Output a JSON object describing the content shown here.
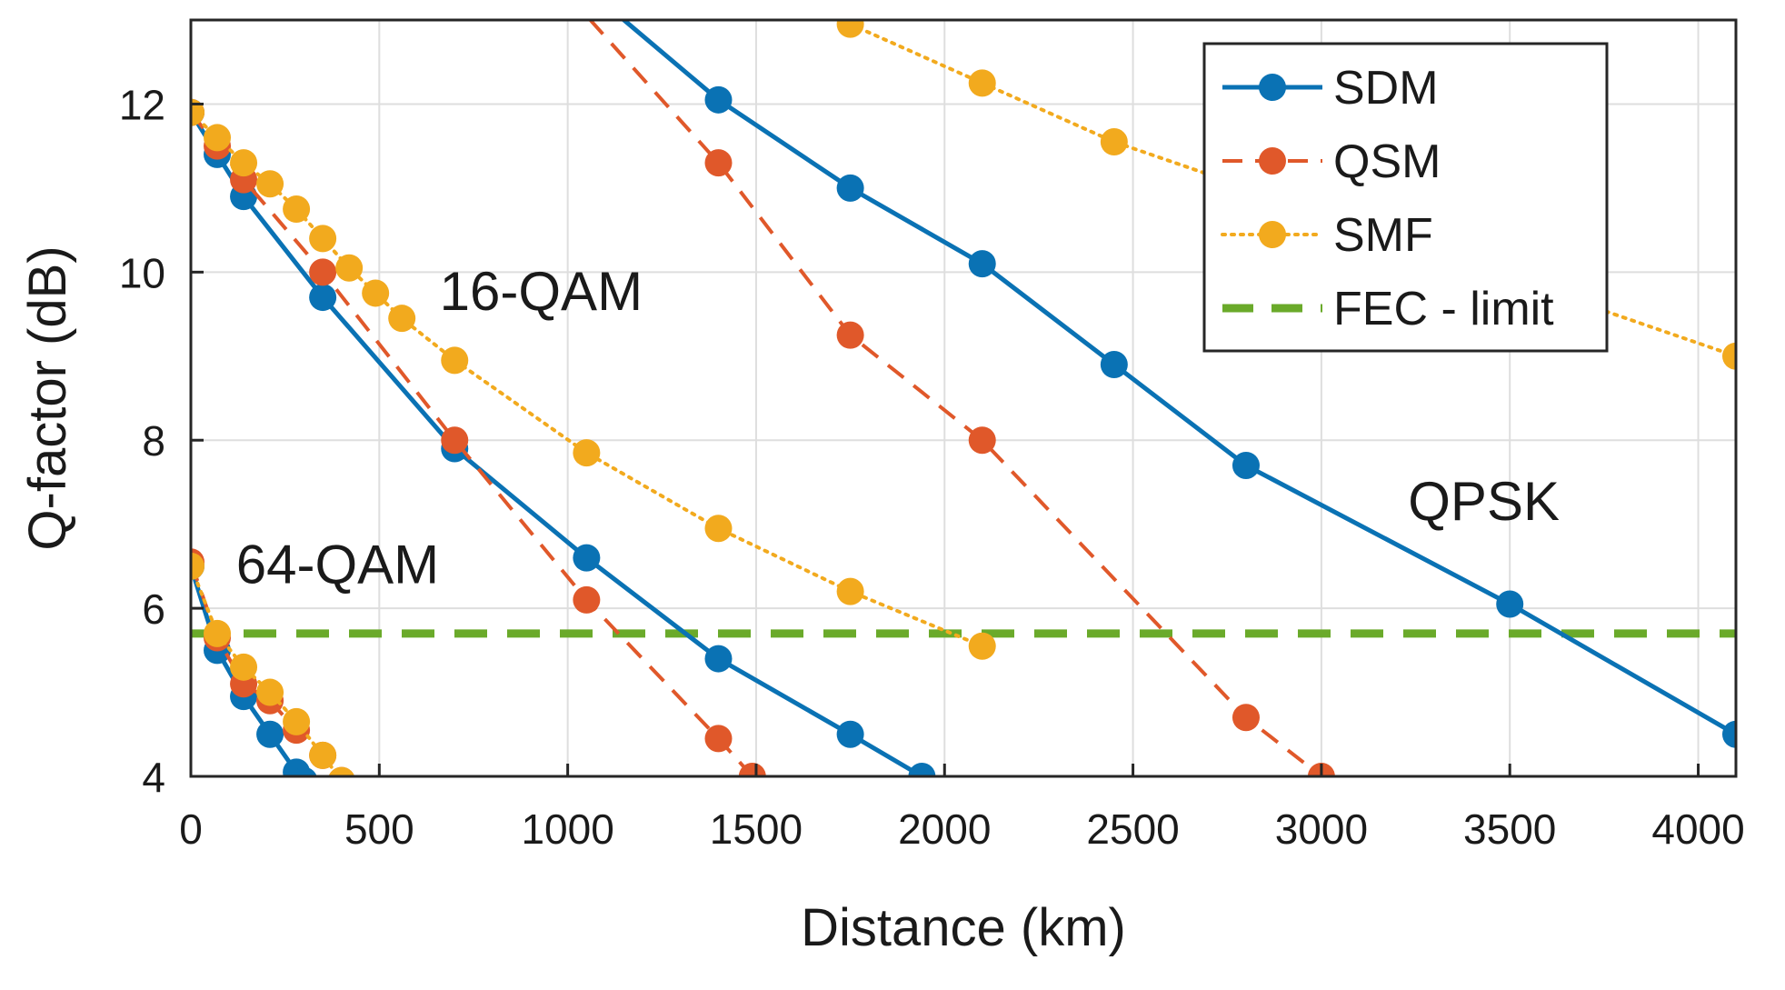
{
  "chart_data": {
    "type": "line",
    "xlabel": "Distance (km)",
    "ylabel": "Q-factor (dB)",
    "xlim": [
      0,
      4100
    ],
    "ylim": [
      4,
      13
    ],
    "xticks": [
      0,
      500,
      1000,
      1500,
      2000,
      2500,
      3000,
      3500,
      4000
    ],
    "yticks": [
      4,
      6,
      8,
      10,
      12
    ],
    "grid": true,
    "legend_position": "top-right",
    "fec_limit": {
      "name": "FEC - limit",
      "y": 5.7,
      "color": "#6aaa2a"
    },
    "series": [
      {
        "key": "sdm",
        "name": "SDM",
        "color": "#0a72b4",
        "style": "solid",
        "show_in_legend": true,
        "points": [
          [
            0,
            11.9
          ],
          [
            70,
            11.4
          ],
          [
            140,
            10.9
          ],
          [
            350,
            9.7
          ],
          [
            700,
            7.9
          ],
          [
            1050,
            6.6
          ],
          [
            1400,
            5.4
          ],
          [
            1750,
            4.5
          ],
          [
            1940,
            4.0
          ]
        ]
      },
      {
        "key": "qsm",
        "name": "QSM",
        "color": "#e0582a",
        "style": "dashed",
        "show_in_legend": true,
        "points": [
          [
            0,
            11.9
          ],
          [
            70,
            11.5
          ],
          [
            140,
            11.1
          ],
          [
            350,
            10.0
          ],
          [
            700,
            8.0
          ],
          [
            1050,
            6.1
          ],
          [
            1400,
            4.45
          ],
          [
            1490,
            4.0
          ]
        ]
      },
      {
        "key": "smf",
        "name": "SMF",
        "color": "#f2aa1e",
        "style": "dotted",
        "show_in_legend": true,
        "points": [
          [
            0,
            11.9
          ],
          [
            70,
            11.6
          ],
          [
            140,
            11.3
          ],
          [
            210,
            11.05
          ],
          [
            280,
            10.75
          ],
          [
            350,
            10.4
          ],
          [
            420,
            10.05
          ],
          [
            490,
            9.75
          ],
          [
            560,
            9.45
          ],
          [
            700,
            8.95
          ],
          [
            1050,
            7.85
          ],
          [
            1400,
            6.95
          ],
          [
            1750,
            6.2
          ],
          [
            2100,
            5.55
          ]
        ]
      },
      {
        "key": "sdm_qpsk",
        "color": "#0a72b4",
        "style": "solid",
        "show_in_legend": false,
        "points": [
          [
            1070,
            13.3
          ],
          [
            1400,
            12.05
          ],
          [
            1750,
            11.0
          ],
          [
            2100,
            10.1
          ],
          [
            2450,
            8.9
          ],
          [
            2800,
            7.7
          ],
          [
            3500,
            6.05
          ],
          [
            4100,
            4.5
          ]
        ]
      },
      {
        "key": "qsm_qpsk",
        "color": "#e0582a",
        "style": "dashed",
        "show_in_legend": false,
        "points": [
          [
            1000,
            13.3
          ],
          [
            1400,
            11.3
          ],
          [
            1750,
            9.25
          ],
          [
            2100,
            8.0
          ],
          [
            2800,
            4.7
          ],
          [
            3000,
            4.0
          ]
        ]
      },
      {
        "key": "smf_qpsk",
        "color": "#f2aa1e",
        "style": "dotted",
        "show_in_legend": false,
        "points": [
          [
            1750,
            12.95
          ],
          [
            2100,
            12.25
          ],
          [
            2450,
            11.55
          ],
          [
            4100,
            9.0
          ]
        ]
      },
      {
        "key": "sdm_64",
        "color": "#0a72b4",
        "style": "solid",
        "show_in_legend": false,
        "points": [
          [
            0,
            6.5
          ],
          [
            70,
            5.5
          ],
          [
            140,
            4.95
          ],
          [
            210,
            4.5
          ],
          [
            280,
            4.05
          ],
          [
            300,
            3.95
          ]
        ]
      },
      {
        "key": "qsm_64",
        "color": "#e0582a",
        "style": "dashed",
        "show_in_legend": false,
        "points": [
          [
            0,
            6.55
          ],
          [
            70,
            5.65
          ],
          [
            140,
            5.1
          ],
          [
            210,
            4.9
          ],
          [
            280,
            4.55
          ],
          [
            350,
            4.25
          ],
          [
            400,
            3.95
          ]
        ]
      },
      {
        "key": "smf_64",
        "color": "#f2aa1e",
        "style": "dotted",
        "show_in_legend": false,
        "points": [
          [
            0,
            6.5
          ],
          [
            70,
            5.7
          ],
          [
            140,
            5.3
          ],
          [
            210,
            5.0
          ],
          [
            280,
            4.65
          ],
          [
            350,
            4.25
          ],
          [
            400,
            3.95
          ]
        ]
      }
    ],
    "annotations": [
      {
        "text": "16-QAM",
        "x": 660,
        "y": 9.55
      },
      {
        "text": "64-QAM",
        "x": 120,
        "y": 6.3
      },
      {
        "text": "QPSK",
        "x": 3230,
        "y": 7.05
      }
    ]
  }
}
